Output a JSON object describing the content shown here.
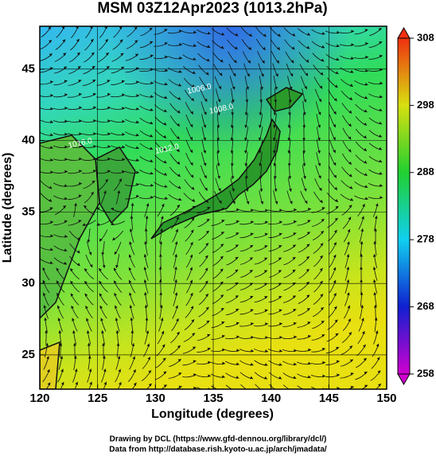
{
  "chart_data": {
    "type": "map",
    "title": "MSM 03Z12Apr2023 (1013.2hPa)",
    "xlabel": "Longitude (degrees)",
    "ylabel": "Latitude  (degrees)",
    "xlim": [
      120,
      150
    ],
    "ylim": [
      22.6,
      48
    ],
    "xticks": [
      120,
      125,
      130,
      135,
      140,
      145,
      150
    ],
    "yticks": [
      25,
      30,
      35,
      40,
      45
    ],
    "grid": true,
    "colorbar": {
      "lim": [
        258,
        308
      ],
      "ticks": [
        258,
        268,
        278,
        288,
        298,
        308
      ]
    },
    "contour_labels": [
      {
        "text": "1016.0",
        "lon": 123.5,
        "lat": 39.8
      },
      {
        "text": "1012.0",
        "lon": 131,
        "lat": 39.4
      },
      {
        "text": "1008.0",
        "lon": 135.7,
        "lat": 42.2
      },
      {
        "text": "1006.0",
        "lon": 133.8,
        "lat": 43.6
      }
    ],
    "credits": [
      "Drawing by DCL (https://www.gfd-dennou.org/library/dcl/)",
      "Data from http://database.rish.kyoto-u.ac.jp/arch/jmadata/"
    ]
  }
}
